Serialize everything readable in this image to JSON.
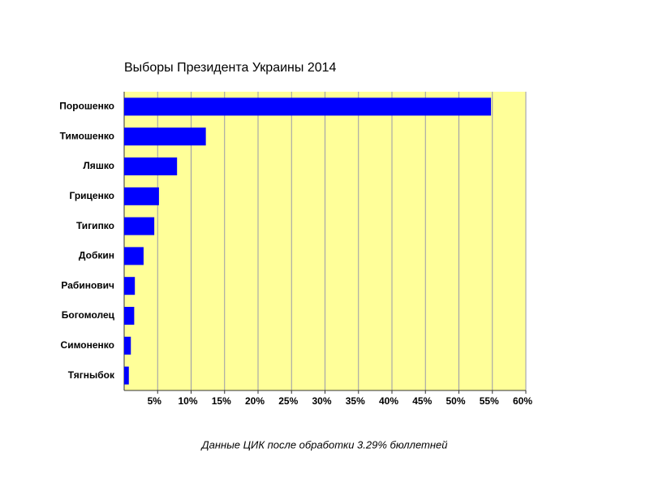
{
  "chart_data": {
    "type": "bar",
    "orientation": "horizontal",
    "title": "Выборы Президента Украины 2014",
    "note": "Данные ЦИК после обработки 3.29% бюллетней",
    "categories": [
      "Порошенко",
      "Тимошенко",
      "Ляшко",
      "Гриценко",
      "Тигипко",
      "Добкин",
      "Рабинович",
      "Богомолец",
      "Симоненко",
      "Тягныбок"
    ],
    "values": [
      54.8,
      12.2,
      7.9,
      5.2,
      4.5,
      2.9,
      1.6,
      1.5,
      1.0,
      0.7
    ],
    "color": "#0000ff",
    "background": "#ffff99",
    "grid": true,
    "xlim": [
      0,
      60
    ],
    "xticks": [
      {
        "value": 5,
        "label": "5%"
      },
      {
        "value": 10,
        "label": "10%"
      },
      {
        "value": 15,
        "label": "15%"
      },
      {
        "value": 20,
        "label": "20%"
      },
      {
        "value": 25,
        "label": "25%"
      },
      {
        "value": 30,
        "label": "30%"
      },
      {
        "value": 35,
        "label": "35%"
      },
      {
        "value": 40,
        "label": "40%"
      },
      {
        "value": 45,
        "label": "45%"
      },
      {
        "value": 50,
        "label": "50%"
      },
      {
        "value": 55,
        "label": "55%"
      },
      {
        "value": 60,
        "label": "60%"
      }
    ]
  }
}
